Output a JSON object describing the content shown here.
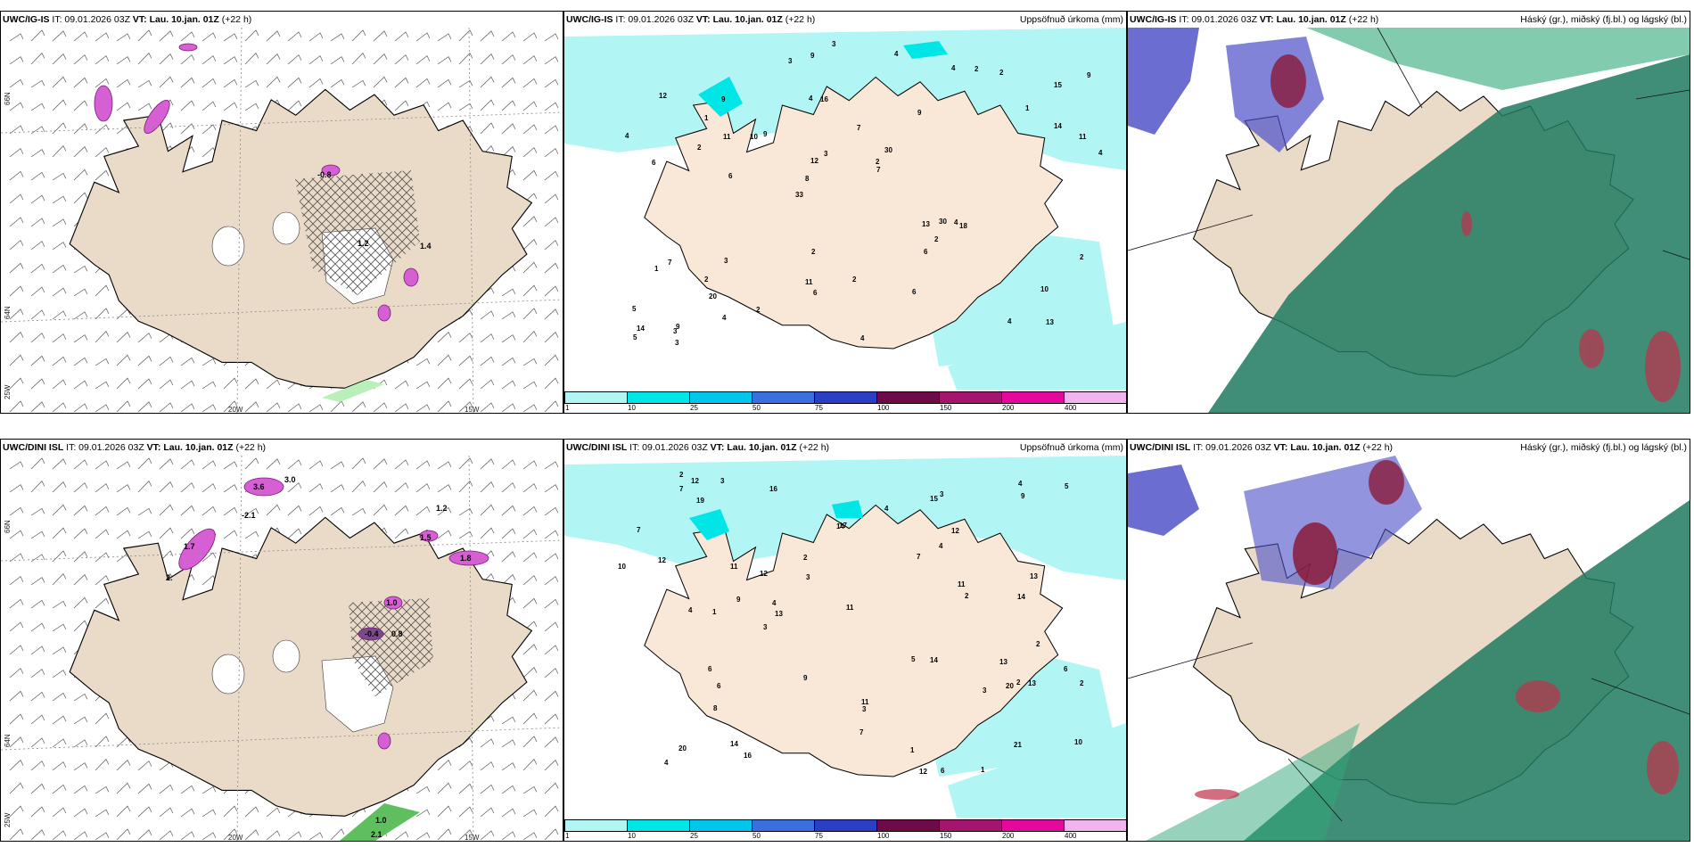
{
  "panels": [
    {
      "model": "UWC/IG-IS",
      "it": "IT: 09.01.2026 03Z",
      "vt_label": "VT:",
      "vt": "Lau. 10.jan. 01Z",
      "lead": "(+22 h)",
      "title": ""
    },
    {
      "model": "UWC/IG-IS",
      "it": "IT: 09.01.2026 03Z",
      "vt_label": "VT:",
      "vt": "Lau. 10.jan. 01Z",
      "lead": "(+22 h)",
      "title": "Uppsöfnuð úrkoma (mm)"
    },
    {
      "model": "UWC/IG-IS",
      "it": "IT: 09.01.2026 03Z",
      "vt_label": "VT:",
      "vt": "Lau. 10.jan. 01Z",
      "lead": "(+22 h)",
      "title": "Háský (gr.), miðský (fj.bl.) og lágský (bl.)"
    },
    {
      "model": "UWC/DINI ISL",
      "it": "IT: 09.01.2026 03Z",
      "vt_label": "VT:",
      "vt": "Lau. 10.jan. 01Z",
      "lead": "(+22 h)",
      "title": ""
    },
    {
      "model": "UWC/DINI ISL",
      "it": "IT: 09.01.2026 03Z",
      "vt_label": "VT:",
      "vt": "Lau. 10.jan. 01Z",
      "lead": "(+22 h)",
      "title": "Uppsöfnuð úrkoma (mm)"
    },
    {
      "model": "UWC/DINI ISL",
      "it": "IT: 09.01.2026 03Z",
      "vt_label": "VT:",
      "vt": "Lau. 10.jan. 01Z",
      "lead": "(+22 h)",
      "title": "Háský (gr.), miðský (fj.bl.) og lágský (bl.)"
    }
  ],
  "axes": {
    "lat66": "66N",
    "lat64": "64N",
    "lat66b": "66N",
    "lat64b": "64N",
    "lon20": "20W",
    "lon15": "15W",
    "lon25": "25W"
  },
  "colorbar": {
    "ticks": [
      "1",
      "10",
      "25",
      "50",
      "75",
      "100",
      "150",
      "200",
      "400"
    ],
    "colors": [
      "#b2f5f5",
      "#00e5e5",
      "#00c6ec",
      "#3a6fe0",
      "#2a3fc4",
      "#6d0a47",
      "#a5146e",
      "#e4089c",
      "#f0b4ef"
    ]
  },
  "precip_top": [
    "13",
    "6",
    "15",
    "33",
    "9",
    "9",
    "4",
    "7",
    "7",
    "9",
    "5",
    "20",
    "16",
    "30",
    "18",
    "12",
    "9",
    "4",
    "13",
    "14",
    "8",
    "11",
    "12",
    "9",
    "4",
    "3",
    "4",
    "10",
    "4",
    "4",
    "10",
    "2",
    "6",
    "4",
    "11",
    "2",
    "14",
    "6",
    "7",
    "1",
    "1",
    "9",
    "2",
    "6",
    "2",
    "3",
    "5",
    "2",
    "2",
    "3",
    "6",
    "4",
    "1",
    "2",
    "3",
    "4",
    "3",
    "3",
    "2",
    "2",
    "2",
    "30",
    "11"
  ],
  "precip_bot": [
    "6",
    "1",
    "3",
    "20",
    "11",
    "12",
    "16",
    "12",
    "12",
    "14",
    "14",
    "9",
    "10",
    "11",
    "16",
    "19",
    "8",
    "14",
    "15",
    "17",
    "12",
    "13",
    "21",
    "4",
    "5",
    "7",
    "3",
    "9",
    "6",
    "9",
    "7",
    "13",
    "10",
    "1",
    "2",
    "1",
    "7",
    "4",
    "13",
    "2",
    "20",
    "4",
    "6",
    "3",
    "4",
    "5",
    "3",
    "4",
    "3",
    "6",
    "3",
    "2",
    "2",
    "2",
    "4",
    "2",
    "11",
    "7",
    "14",
    "13",
    "12",
    "11"
  ],
  "temp_labels_top": [
    "-0.8",
    "1.2",
    "1.4"
  ],
  "temp_labels_bot": [
    "3.6",
    "3.0",
    "-2.1",
    "1.2",
    "2.",
    "1.7",
    "1.5",
    "1.8",
    "1.0",
    "0.8",
    "-0.4",
    "1.0",
    "2.1"
  ]
}
